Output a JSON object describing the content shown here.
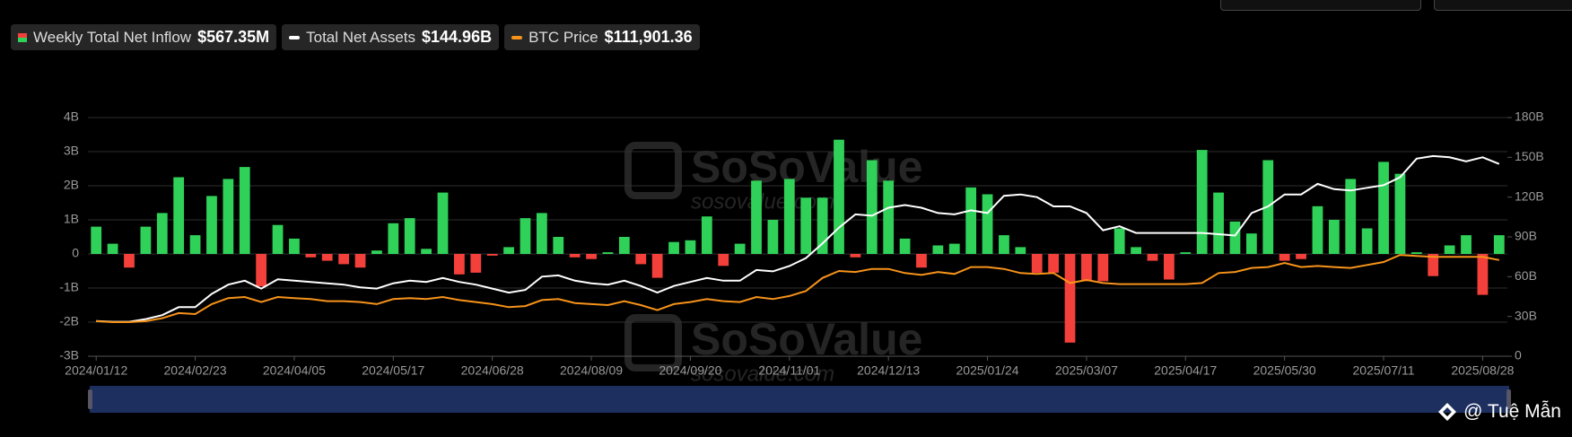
{
  "chart_data": {
    "type": "bar",
    "categories": [
      "2024/01/12",
      null,
      null,
      null,
      null,
      null,
      "2024/02/23",
      null,
      null,
      null,
      null,
      null,
      "2024/04/05",
      null,
      null,
      null,
      null,
      null,
      "2024/05/17",
      null,
      null,
      null,
      null,
      null,
      "2024/06/28",
      null,
      null,
      null,
      null,
      null,
      "2024/08/09",
      null,
      null,
      null,
      null,
      null,
      "2024/09/20",
      null,
      null,
      null,
      null,
      null,
      "2024/11/01",
      null,
      null,
      null,
      null,
      null,
      "2024/12/13",
      null,
      null,
      null,
      null,
      null,
      "2025/01/24",
      null,
      null,
      null,
      null,
      null,
      "2025/03/07",
      null,
      null,
      null,
      null,
      null,
      "2025/04/17",
      null,
      null,
      null,
      null,
      null,
      "2025/05/30",
      null,
      null,
      null,
      null,
      null,
      "2025/07/11",
      null,
      null,
      null,
      null,
      null,
      "2025/08/28",
      null
    ],
    "series": [
      {
        "name": "Weekly Total Net Inflow",
        "latest": "$567.35M",
        "color": "#2fd158",
        "negative_color": "#f4403a",
        "values": [
          0.8,
          0.3,
          -0.4,
          0.8,
          1.2,
          2.25,
          0.55,
          1.7,
          2.2,
          2.55,
          -0.95,
          0.85,
          0.45,
          -0.1,
          -0.2,
          -0.3,
          -0.4,
          0.1,
          0.9,
          1.05,
          0.15,
          1.8,
          -0.6,
          -0.55,
          -0.05,
          0.2,
          1.05,
          1.2,
          0.5,
          -0.1,
          -0.15,
          0.05,
          0.5,
          -0.3,
          -0.7,
          0.35,
          0.4,
          1.1,
          -0.35,
          0.3,
          2.15,
          1.0,
          2.2,
          1.65,
          1.65,
          3.35,
          -0.1,
          2.75,
          2.15,
          0.45,
          -0.4,
          0.25,
          0.3,
          1.95,
          1.75,
          0.55,
          0.2,
          -0.55,
          -0.55,
          -2.6,
          -0.8,
          -0.8,
          0.75,
          0.2,
          -0.2,
          -0.75,
          0.05,
          3.05,
          1.8,
          0.95,
          0.6,
          2.75,
          -0.2,
          -0.15,
          1.4,
          1.0,
          2.2,
          0.75,
          2.7,
          2.35,
          0.05,
          -0.65,
          0.25,
          0.55,
          -1.2,
          0.55
        ]
      },
      {
        "name": "Total Net Assets",
        "latest": "$144.96B",
        "type": "line",
        "axis": "y2",
        "color": "#ffffff",
        "values": [
          26.5,
          26,
          26,
          28,
          31,
          37,
          37,
          47,
          54,
          57,
          51,
          58,
          57,
          56,
          55,
          54,
          52,
          51,
          55,
          57,
          56,
          59,
          56,
          54,
          51,
          48,
          50,
          60,
          61,
          57,
          55,
          54,
          57,
          53,
          48,
          53,
          56,
          59,
          57,
          57,
          65,
          64,
          68,
          74,
          85,
          97,
          107,
          106,
          112,
          114,
          112,
          108,
          107,
          110,
          108,
          121,
          122,
          120,
          113,
          113,
          108,
          95,
          98,
          93,
          93,
          93,
          93,
          93,
          92,
          91,
          108,
          113,
          122,
          122,
          130,
          126,
          125,
          127,
          129,
          135,
          149,
          151,
          150,
          147,
          150,
          145
        ]
      },
      {
        "name": "BTC Price",
        "latest": "$111,901.36",
        "type": "line",
        "axis": "y3",
        "color": "#f7931a",
        "values": [
          46000,
          44900,
          44900,
          46000,
          49200,
          54700,
          53600,
          64400,
          70900,
          72000,
          66600,
          72000,
          70900,
          69800,
          67600,
          67600,
          66600,
          64400,
          69800,
          70900,
          69800,
          72000,
          68700,
          66600,
          64400,
          61100,
          62200,
          68700,
          69800,
          65500,
          64400,
          63300,
          67600,
          63300,
          57900,
          64400,
          66600,
          69800,
          67600,
          66600,
          72000,
          69800,
          73100,
          78500,
          92500,
          100100,
          99000,
          102300,
          102300,
          97900,
          95800,
          99000,
          96900,
          104400,
          104400,
          102300,
          97900,
          96900,
          97900,
          87100,
          90400,
          87100,
          86000,
          86000,
          86000,
          86000,
          86000,
          87100,
          97900,
          99000,
          103400,
          104400,
          108800,
          104400,
          105500,
          104400,
          103400,
          106600,
          109800,
          117400,
          116300,
          115300,
          115300,
          115300,
          115300,
          111900
        ]
      }
    ],
    "ylim": [
      -3,
      4
    ],
    "yticks": [
      {
        "value": 4,
        "label": "4B"
      },
      {
        "value": 3,
        "label": "3B"
      },
      {
        "value": 2,
        "label": "2B"
      },
      {
        "value": 1,
        "label": "1B"
      },
      0,
      {
        "value": -1,
        "label": "-1B"
      },
      {
        "value": -2,
        "label": "-2B"
      },
      {
        "value": -3,
        "label": "-3B"
      }
    ],
    "y2lim": [
      0,
      180
    ],
    "y2ticks": [
      {
        "value": 180,
        "label": "180B"
      },
      {
        "value": 150,
        "label": "150B"
      },
      {
        "value": 120,
        "label": "120B"
      },
      {
        "value": 90,
        "label": "90B"
      },
      {
        "value": 60,
        "label": "60B"
      },
      {
        "value": 30,
        "label": "30B"
      },
      0
    ],
    "y3lim": [
      8100,
      265700
    ],
    "grid": true,
    "watermark": [
      "SoSoValue",
      "sosovalue.com"
    ],
    "credit": "@ Tuệ Mẫn"
  }
}
